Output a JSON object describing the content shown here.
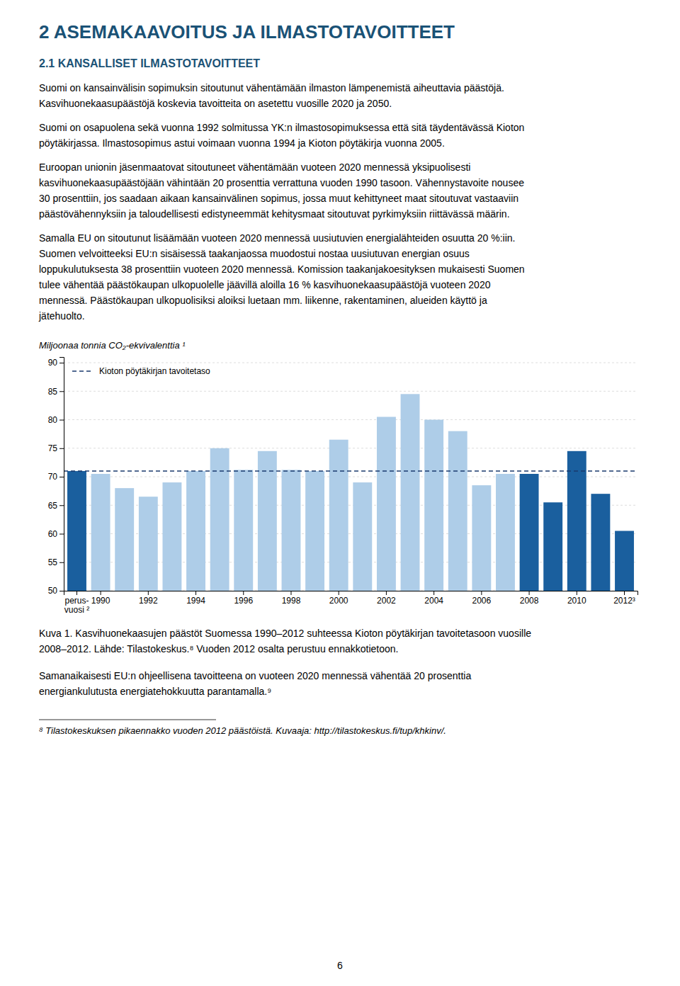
{
  "page": {
    "heading1": "2  ASEMAKAAVOITUS JA ILMASTOTAVOITTEET",
    "heading2": "2.1 KANSALLISET ILMASTOTAVOITTEET",
    "heading1_color": "#1a5276",
    "heading2_color": "#1a5276",
    "text_color": "#000000",
    "paragraphs_before": [
      "Suomi on kansainvälisin sopimuksin sitoutunut vähentämään ilmaston lämpenemistä aiheuttavia päästöjä.\nKasvihuonekaasupäästöjä koskevia tavoitteita on asetettu vuosille 2020 ja 2050.",
      "Suomi on osapuolena sekä vuonna 1992 solmitussa YK:n ilmastosopimuksessa että sitä täydentävässä Kioton\npöytäkirjassa. Ilmastosopimus astui voimaan vuonna 1994 ja Kioton pöytäkirja vuonna 2005.",
      "Euroopan unionin jäsenmaatovat sitoutuneet vähentämään vuoteen 2020 mennessä yksipuolisesti\nkasvihuonekaasupäästöjään vähintään 20 prosenttia verrattuna vuoden 1990 tasoon. Vähennystavoite nousee\n30 prosenttiin, jos saadaan aikaan kansainvälinen sopimus, jossa muut kehittyneet maat sitoutuvat vastaaviin\npäästövähennyksiin ja taloudellisesti edistyneemmät kehitysmaat sitoutuvat pyrkimyksiin riittävässä määrin.",
      "Samalla EU on sitoutunut lisäämään vuoteen 2020 mennessä uusiutuvien energialähteiden osuutta 20 %:iin.\nSuomen velvoitteeksi EU:n sisäisessä taakanjaossa muodostui nostaa uusiutuvan energian osuus\nloppukulutuksesta 38 prosenttiin vuoteen 2020 mennessä. Komission taakanjakoesityksen mukaisesti Suomen\ntulee vähentää päästökaupan ulkopuolelle jäävillä aloilla 16 % kasvihuonekaasupäästöjä vuoteen 2020\nmennessä. Päästökaupan ulkopuolisiksi aloiksi luetaan mm. liikenne, rakentaminen, alueiden käyttö ja\njätehuolto."
    ],
    "paragraphs_after": [
      "Samanaikaisesti EU:n ohjeellisena tavoitteena on vuoteen 2020 mennessä vähentää 20 prosenttia\nenergiankulutusta energiatehokkuutta parantamalla.⁹"
    ],
    "footnote": "⁸ Tilastokeskuksen pikaennakko vuoden 2012 päästöistä. Kuvaaja: http://tilastokeskus.fi/tup/khkinv/.",
    "page_number": "6"
  },
  "chart_data": {
    "type": "bar",
    "y_label": "Miljoonaa tonnia CO₂-ekvivalenttia ¹",
    "caption": "Kuva 1. Kasvihuonekaasujen päästöt Suomessa 1990–2012 suhteessa Kioton pöytäkirjan tavoitetasoon vuosille\n2008–2012. Lähde: Tilastokeskus.⁸ Vuoden 2012 osalta perustuu ennakkotietoon.",
    "categories": [
      "perus-\nvuosi ²",
      "1990",
      null,
      "1992",
      null,
      "1994",
      null,
      "1996",
      null,
      "1998",
      null,
      "2000",
      null,
      "2002",
      null,
      "2004",
      null,
      "2006",
      null,
      "2008",
      null,
      "2010",
      null,
      "2012³"
    ],
    "values": [
      71.0,
      70.5,
      68.0,
      66.5,
      69.0,
      71.0,
      75.0,
      71.2,
      74.5,
      71.2,
      71.0,
      76.5,
      69.0,
      80.5,
      84.5,
      80.0,
      78.0,
      68.5,
      70.5,
      70.5,
      65.5,
      74.5,
      67.0,
      60.5
    ],
    "colors": [
      "#1a5f9e",
      "#aecde8",
      "#aecde8",
      "#aecde8",
      "#aecde8",
      "#aecde8",
      "#aecde8",
      "#aecde8",
      "#aecde8",
      "#aecde8",
      "#aecde8",
      "#aecde8",
      "#aecde8",
      "#aecde8",
      "#aecde8",
      "#aecde8",
      "#aecde8",
      "#aecde8",
      "#aecde8",
      "#1a5f9e",
      "#1a5f9e",
      "#1a5f9e",
      "#1a5f9e",
      "#1a5f9e"
    ],
    "ylim": [
      50,
      91
    ],
    "yticks": [
      50,
      55,
      60,
      65,
      70,
      75,
      80,
      85,
      90
    ],
    "grid": true,
    "target_line": {
      "value": 71.0,
      "label": "Kioton pöytäkirjan tavoitetaso",
      "color": "#1a3a6e",
      "line_style": "dashed"
    },
    "legend": "upper left"
  }
}
